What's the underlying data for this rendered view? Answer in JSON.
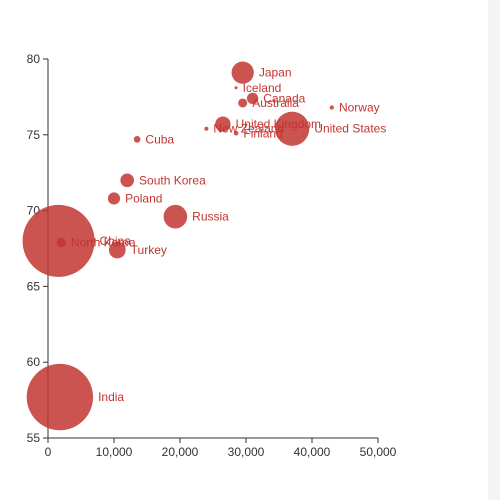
{
  "chart_data": {
    "type": "scatter",
    "xlim": [
      0,
      50000
    ],
    "ylim": [
      55,
      80
    ],
    "x_ticks": [
      "0",
      "10,000",
      "20,000",
      "30,000",
      "40,000",
      "50,000"
    ],
    "y_ticks": [
      "55",
      "60",
      "65",
      "70",
      "75",
      "80"
    ],
    "grid": false,
    "color": "#c23531",
    "points": [
      {
        "label": "Japan",
        "x": 29500,
        "y": 79.1,
        "size": 127000000
      },
      {
        "label": "Iceland",
        "x": 28500,
        "y": 78.1,
        "size": 300000
      },
      {
        "label": "Canada",
        "x": 31000,
        "y": 77.4,
        "size": 33000000
      },
      {
        "label": "Australia",
        "x": 29500,
        "y": 77.1,
        "size": 21000000
      },
      {
        "label": "Norway",
        "x": 43000,
        "y": 76.8,
        "size": 4700000
      },
      {
        "label": "United Kingdom",
        "x": 26500,
        "y": 75.7,
        "size": 61000000
      },
      {
        "label": "United States",
        "x": 37000,
        "y": 75.4,
        "size": 300000000
      },
      {
        "label": "New Zealand",
        "x": 24000,
        "y": 75.4,
        "size": 4200000
      },
      {
        "label": "Finland",
        "x": 28500,
        "y": 75.1,
        "size": 5300000
      },
      {
        "label": "Cuba",
        "x": 13500,
        "y": 74.7,
        "size": 11300000
      },
      {
        "label": "South Korea",
        "x": 12000,
        "y": 72.0,
        "size": 48000000
      },
      {
        "label": "Poland",
        "x": 10000,
        "y": 70.8,
        "size": 38000000
      },
      {
        "label": "Russia",
        "x": 19300,
        "y": 69.6,
        "size": 143000000
      },
      {
        "label": "China",
        "x": 1600,
        "y": 68.0,
        "size": 1330000000
      },
      {
        "label": "North Korea",
        "x": 2000,
        "y": 67.9,
        "size": 23000000
      },
      {
        "label": "Turkey",
        "x": 10500,
        "y": 67.4,
        "size": 72000000
      },
      {
        "label": "India",
        "x": 1800,
        "y": 57.7,
        "size": 1130000000
      }
    ]
  }
}
